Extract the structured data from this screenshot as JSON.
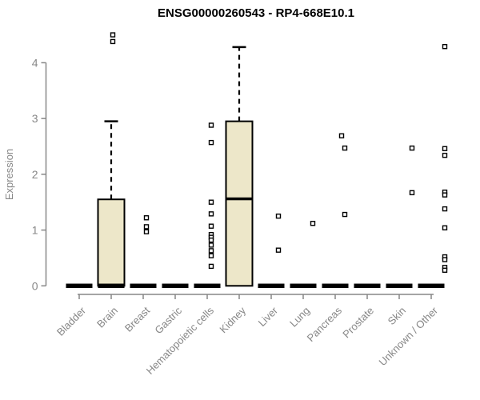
{
  "title": "ENSG00000260543 - RP4-668E10.1",
  "y_axis": {
    "label": "Expression",
    "tick_labels": [
      "0",
      "1",
      "2",
      "3",
      "4"
    ]
  },
  "x_axis": {
    "tick_labels": [
      "Bladder",
      "Brain",
      "Breast",
      "Gastric",
      "Hematopoietic cells",
      "Kidney",
      "Liver",
      "Lung",
      "Pancreas",
      "Prostate",
      "Skin",
      "Unknown / Other"
    ]
  },
  "chart_data": {
    "type": "boxplot",
    "title": "ENSG00000260543 - RP4-668E10.1",
    "xlabel": "",
    "ylabel": "Expression",
    "ylim": [
      0,
      4.6
    ],
    "yticks": [
      0,
      1,
      2,
      3,
      4
    ],
    "grid": false,
    "legend": false,
    "categories": [
      "Bladder",
      "Brain",
      "Breast",
      "Gastric",
      "Hematopoietic cells",
      "Kidney",
      "Liver",
      "Lung",
      "Pancreas",
      "Prostate",
      "Skin",
      "Unknown / Other"
    ],
    "boxes": [
      {
        "category": "Bladder",
        "q1": 0,
        "median": 0,
        "q3": 0,
        "whisker_low": 0,
        "whisker_high": 0,
        "outliers": []
      },
      {
        "category": "Brain",
        "q1": 0,
        "median": 0,
        "q3": 1.55,
        "whisker_low": 0,
        "whisker_high": 2.95,
        "outliers": [
          {
            "v": 4.5,
            "dx": 2
          },
          {
            "v": 4.38,
            "dx": 2
          }
        ]
      },
      {
        "category": "Breast",
        "q1": 0,
        "median": 0,
        "q3": 0,
        "whisker_low": 0,
        "whisker_high": 0,
        "outliers": [
          {
            "v": 1.22,
            "dx": 4
          },
          {
            "v": 1.06,
            "dx": 4
          },
          {
            "v": 0.97,
            "dx": 4
          }
        ]
      },
      {
        "category": "Gastric",
        "q1": 0,
        "median": 0,
        "q3": 0,
        "whisker_low": 0,
        "whisker_high": 0,
        "outliers": []
      },
      {
        "category": "Hematopoietic cells",
        "q1": 0,
        "median": 0,
        "q3": 0,
        "whisker_low": 0,
        "whisker_high": 0,
        "outliers": [
          {
            "v": 2.88,
            "dx": 5
          },
          {
            "v": 2.57,
            "dx": 5
          },
          {
            "v": 1.5,
            "dx": 5
          },
          {
            "v": 1.29,
            "dx": 5
          },
          {
            "v": 1.07,
            "dx": 5
          },
          {
            "v": 0.92,
            "dx": 5
          },
          {
            "v": 0.87,
            "dx": 5
          },
          {
            "v": 0.82,
            "dx": 5
          },
          {
            "v": 0.73,
            "dx": 5
          },
          {
            "v": 0.63,
            "dx": 5
          },
          {
            "v": 0.54,
            "dx": 5
          },
          {
            "v": 0.35,
            "dx": 5
          }
        ]
      },
      {
        "category": "Kidney",
        "q1": 0,
        "median": 1.56,
        "q3": 2.95,
        "whisker_low": 0,
        "whisker_high": 4.28,
        "outliers": []
      },
      {
        "category": "Liver",
        "q1": 0,
        "median": 0,
        "q3": 0,
        "whisker_low": 0,
        "whisker_high": 0,
        "outliers": [
          {
            "v": 1.25,
            "dx": 9
          },
          {
            "v": 0.64,
            "dx": 9
          }
        ]
      },
      {
        "category": "Lung",
        "q1": 0,
        "median": 0,
        "q3": 0,
        "whisker_low": 0,
        "whisker_high": 0,
        "outliers": [
          {
            "v": 1.12,
            "dx": 12
          }
        ]
      },
      {
        "category": "Pancreas",
        "q1": 0,
        "median": 0,
        "q3": 0,
        "whisker_low": 0,
        "whisker_high": 0,
        "outliers": [
          {
            "v": 2.69,
            "dx": 8
          },
          {
            "v": 2.47,
            "dx": 12
          },
          {
            "v": 1.28,
            "dx": 12
          }
        ]
      },
      {
        "category": "Prostate",
        "q1": 0,
        "median": 0,
        "q3": 0,
        "whisker_low": 0,
        "whisker_high": 0,
        "outliers": []
      },
      {
        "category": "Skin",
        "q1": 0,
        "median": 0,
        "q3": 0,
        "whisker_low": 0,
        "whisker_high": 0,
        "outliers": [
          {
            "v": 2.47,
            "dx": 16
          },
          {
            "v": 1.67,
            "dx": 16
          }
        ]
      },
      {
        "category": "Unknown / Other",
        "q1": 0,
        "median": 0,
        "q3": 0,
        "whisker_low": 0,
        "whisker_high": 0,
        "outliers": [
          {
            "v": 4.29,
            "dx": 17
          },
          {
            "v": 2.46,
            "dx": 17
          },
          {
            "v": 2.34,
            "dx": 17
          },
          {
            "v": 1.68,
            "dx": 17
          },
          {
            "v": 1.63,
            "dx": 17
          },
          {
            "v": 1.38,
            "dx": 17
          },
          {
            "v": 1.04,
            "dx": 17
          },
          {
            "v": 0.52,
            "dx": 17
          },
          {
            "v": 0.47,
            "dx": 17
          },
          {
            "v": 0.33,
            "dx": 17
          },
          {
            "v": 0.28,
            "dx": 17
          }
        ]
      }
    ]
  },
  "colors": {
    "box_fill": "#ede7c9",
    "box_stroke": "#000000",
    "median": "#000000",
    "whisker": "#000000",
    "outlier_stroke": "#000000",
    "outlier_fill": "#ffffff",
    "axis_gray": "#878787",
    "title_color": "#000000",
    "background": "#ffffff"
  }
}
